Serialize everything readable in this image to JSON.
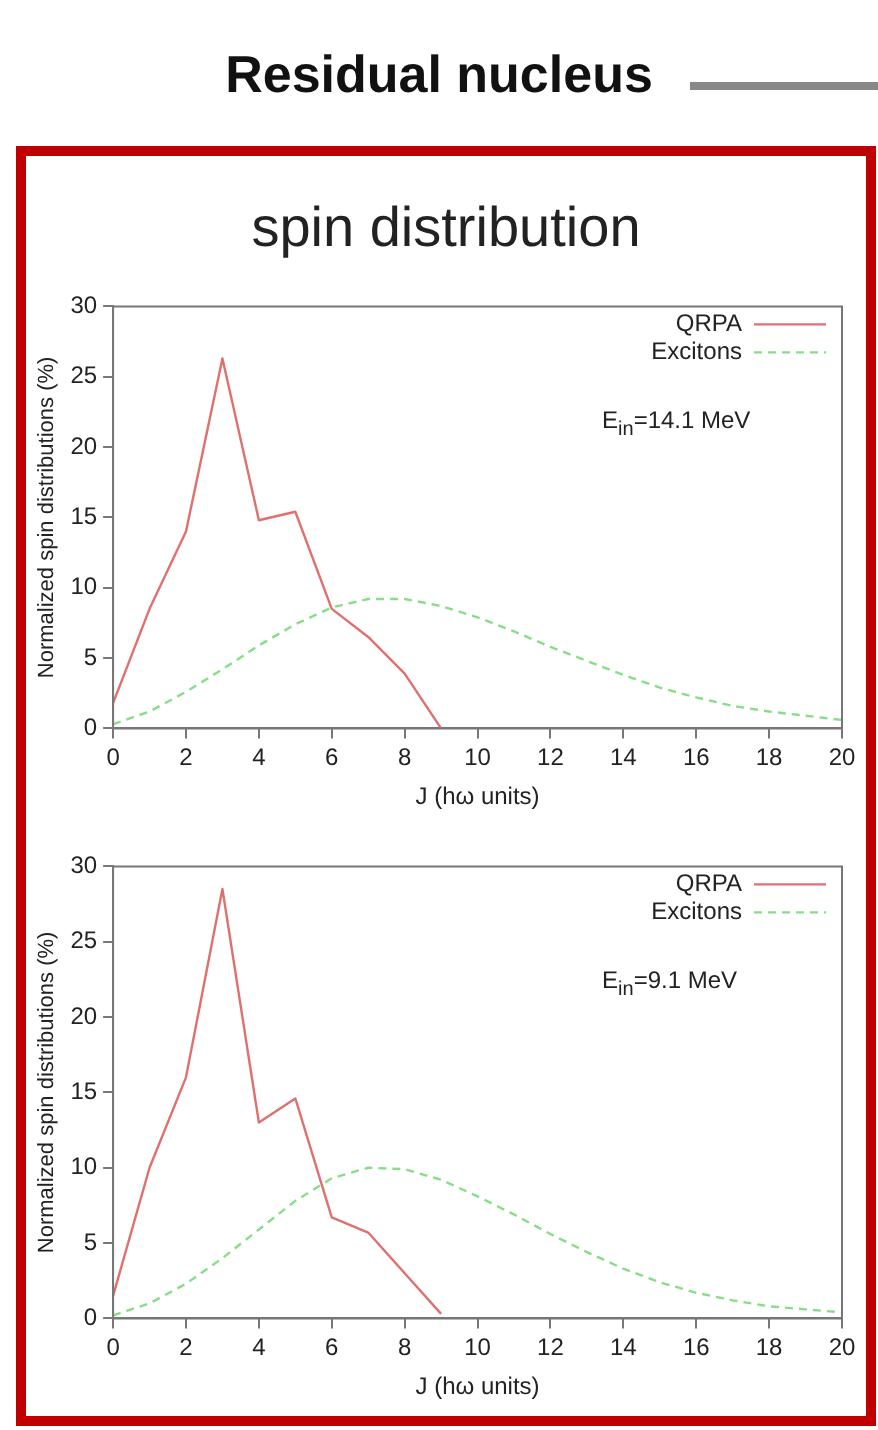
{
  "chart_data": [
    {
      "type": "line",
      "title": "Residual nucleus",
      "subtitle": "spin distribution",
      "xlabel": "J (hω units)",
      "ylabel": "Normalized spin distributions (%)",
      "xlim": [
        0,
        20
      ],
      "xticks": [
        0,
        2,
        4,
        6,
        8,
        10,
        12,
        14,
        16,
        18,
        20
      ],
      "ylim": [
        0,
        30
      ],
      "yticks": [
        0,
        5,
        10,
        15,
        20,
        25,
        30
      ],
      "grid": false,
      "legend": "top right",
      "marker": "none",
      "annotations": [
        "E$_{in}$=14.1 MeV"
      ],
      "series": [
        {
          "name": "QRPA",
          "color": "#e07070",
          "line_style": "solid",
          "x": [
            0,
            1,
            2,
            3,
            4,
            5,
            6,
            7,
            8,
            9
          ],
          "values": [
            1.8,
            8.5,
            14,
            26.3,
            14.8,
            15.4,
            8.5,
            6.5,
            3.9,
            0
          ]
        },
        {
          "name": "Excitons",
          "color": "#88dd88",
          "line_style": "dashed",
          "x": [
            0,
            1,
            2,
            3,
            4,
            5,
            6,
            7,
            8,
            9,
            10,
            11,
            12,
            13,
            14,
            15,
            16,
            17,
            18,
            19,
            20
          ],
          "values": [
            0.3,
            1.2,
            2.6,
            4.2,
            5.9,
            7.4,
            8.6,
            9.2,
            9.2,
            8.7,
            7.9,
            6.9,
            5.8,
            4.8,
            3.8,
            2.9,
            2.2,
            1.6,
            1.2,
            0.9,
            0.6
          ]
        }
      ]
    },
    {
      "type": "line",
      "xlabel": "J (hω units)",
      "ylabel": "Normalized spin distributions (%)",
      "xlim": [
        0,
        20
      ],
      "xticks": [
        0,
        2,
        4,
        6,
        8,
        10,
        12,
        14,
        16,
        18,
        20
      ],
      "ylim": [
        0,
        30
      ],
      "yticks": [
        0,
        5,
        10,
        15,
        20,
        25,
        30
      ],
      "grid": false,
      "legend": "top right",
      "marker": "none",
      "annotations": [
        "E$_{in}$=9.1 MeV"
      ],
      "series": [
        {
          "name": "QRPA",
          "color": "#e07070",
          "line_style": "solid",
          "x": [
            0,
            1,
            2,
            3,
            4,
            5,
            6,
            7,
            8,
            9
          ],
          "values": [
            1.5,
            10,
            16,
            28.5,
            13,
            14.6,
            6.7,
            5.7,
            3,
            0.3
          ]
        },
        {
          "name": "Excitons",
          "color": "#88dd88",
          "line_style": "dashed",
          "x": [
            0,
            1,
            2,
            3,
            4,
            5,
            6,
            7,
            8,
            9,
            10,
            11,
            12,
            13,
            14,
            15,
            16,
            17,
            18,
            19,
            20
          ],
          "values": [
            0.2,
            1,
            2.3,
            4,
            5.9,
            7.8,
            9.3,
            10,
            9.9,
            9.2,
            8.1,
            6.9,
            5.6,
            4.4,
            3.3,
            2.4,
            1.7,
            1.2,
            0.8,
            0.6,
            0.4
          ]
        }
      ]
    }
  ]
}
